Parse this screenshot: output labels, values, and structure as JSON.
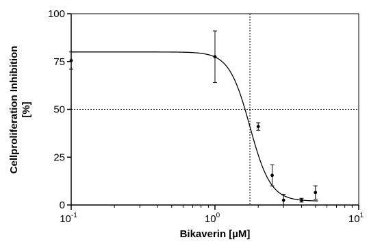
{
  "chart_data": {
    "type": "scatter",
    "title": "",
    "xlabel": "Bikaverin [µM]",
    "ylabel_line1": "Cellproliferation Inhibition",
    "ylabel_line2": "[%]",
    "x_scale": "log",
    "xlim": [
      0.1,
      10
    ],
    "ylim": [
      0,
      100
    ],
    "x_ticks": [
      {
        "value": 0.1,
        "base": "10",
        "exp": "-1"
      },
      {
        "value": 1,
        "base": "10",
        "exp": "0"
      },
      {
        "value": 10,
        "base": "10",
        "exp": "1"
      }
    ],
    "y_ticks": [
      {
        "value": 0,
        "label": "0"
      },
      {
        "value": 25,
        "label": "25"
      },
      {
        "value": 50,
        "label": "50"
      },
      {
        "value": 75,
        "label": "75"
      },
      {
        "value": 100,
        "label": "100"
      }
    ],
    "points": [
      {
        "x": 0.1,
        "y": 75.5,
        "err": 4.5
      },
      {
        "x": 1.0,
        "y": 77.5,
        "err": 13.5
      },
      {
        "x": 2.0,
        "y": 41,
        "err": 2
      },
      {
        "x": 2.5,
        "y": 15.5,
        "err": 5.5
      },
      {
        "x": 3.0,
        "y": 2.5,
        "err": 3
      },
      {
        "x": 4.0,
        "y": 2.5,
        "err": 1
      },
      {
        "x": 5.0,
        "y": 6.5,
        "err": 3.5
      }
    ],
    "fit_curve": {
      "top": 80,
      "bottom": 2,
      "ic50": 1.75,
      "hill": 6
    },
    "reference_lines": {
      "x": 1.75,
      "y": 50
    },
    "grid": false,
    "legend": "none"
  }
}
